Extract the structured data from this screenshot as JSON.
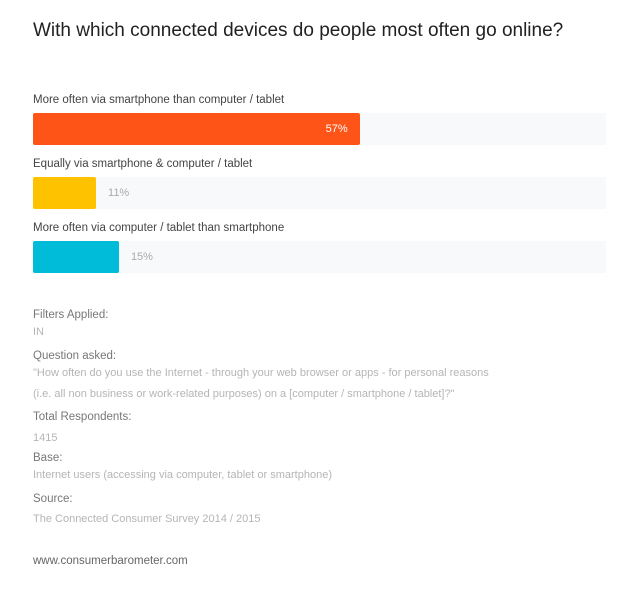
{
  "chart_data": {
    "type": "bar",
    "orientation": "horizontal",
    "title": "With which connected devices do people most often go online?",
    "xlim": [
      0,
      100
    ],
    "grid": false,
    "categories": [
      "More often via smartphone than computer / tablet",
      "Equally via smartphone & computer / tablet",
      "More often via computer / tablet than smartphone"
    ],
    "values": [
      57,
      11,
      15
    ],
    "value_labels": [
      "57%",
      "11%",
      "15%"
    ],
    "colors": [
      "#ff5418",
      "#ffc200",
      "#00bcd8"
    ]
  },
  "meta": {
    "filters_label": "Filters Applied:",
    "filters_value": "IN",
    "question_label": "Question asked:",
    "question_value": "\"How often do you use the Internet - through your web browser or apps - for personal reasons (i.e. all non business or work-related purposes) on a [computer / smartphone / tablet]?\"",
    "respondents_label": "Total Respondents:",
    "respondents_value": "1415",
    "base_label": "Base:",
    "base_value": "Internet users (accessing via computer, tablet or smartphone)",
    "source_label": "Source:",
    "source_value": "The Connected Consumer Survey 2014 / 2015"
  },
  "footer": "www.consumerbarometer.com"
}
